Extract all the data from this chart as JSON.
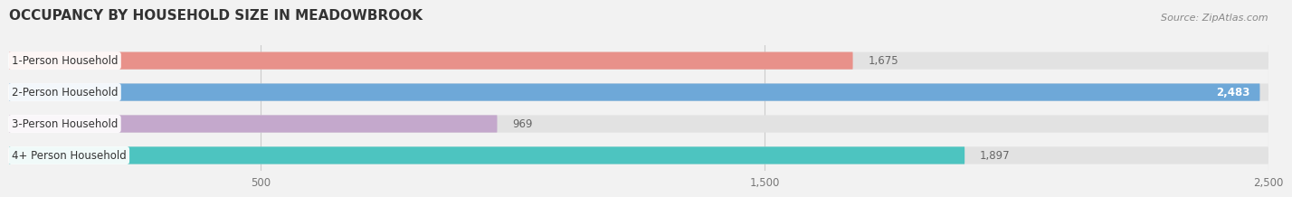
{
  "title": "OCCUPANCY BY HOUSEHOLD SIZE IN MEADOWBROOK",
  "source": "Source: ZipAtlas.com",
  "categories": [
    "1-Person Household",
    "2-Person Household",
    "3-Person Household",
    "4+ Person Household"
  ],
  "values": [
    1675,
    2483,
    969,
    1897
  ],
  "bar_colors": [
    "#E8918A",
    "#6EA8D8",
    "#C4A8CC",
    "#4DC4C0"
  ],
  "label_bg_color": "#ffffff",
  "background_color": "#f2f2f2",
  "bar_bg_color": "#e2e2e2",
  "xlim": [
    0,
    2500
  ],
  "xticks": [
    500,
    1500,
    2500
  ],
  "label_fontsize": 8.5,
  "value_fontsize": 8.5,
  "title_fontsize": 11,
  "value_inside_color": "#ffffff",
  "value_outside_color": "#666666",
  "inside_threshold": 2200
}
